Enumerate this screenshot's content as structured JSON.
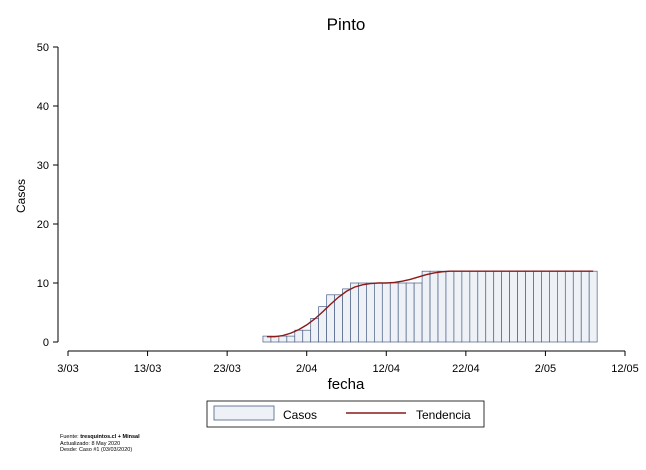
{
  "chart_data": {
    "type": "bar",
    "title": "Pinto",
    "xlabel": "fecha",
    "ylabel": "Casos",
    "ylim": [
      0,
      50
    ],
    "yticks": [
      "0",
      "10",
      "20",
      "30",
      "40",
      "50"
    ],
    "xticks": [
      "3/03",
      "13/03",
      "23/03",
      "2/04",
      "12/04",
      "22/04",
      "2/05",
      "12/05"
    ],
    "xlim": [
      "2020-03-03",
      "2020-05-12"
    ],
    "first_date": "2020-03-28",
    "values": [
      1,
      1,
      1,
      1,
      2,
      2,
      4,
      6,
      8,
      8,
      9,
      10,
      10,
      10,
      10,
      10,
      10,
      10,
      10,
      10,
      12,
      12,
      12,
      12,
      12,
      12,
      12,
      12,
      12,
      12,
      12,
      12,
      12,
      12,
      12,
      12,
      12,
      12,
      12,
      12,
      12,
      12
    ],
    "trend": [
      0.9,
      0.9,
      1.1,
      1.5,
      2.1,
      2.9,
      3.9,
      5.1,
      6.4,
      7.6,
      8.6,
      9.3,
      9.7,
      9.9,
      10.0,
      10.0,
      10.1,
      10.3,
      10.6,
      11.0,
      11.4,
      11.7,
      11.9,
      12.0,
      12.0,
      12.0,
      12.0,
      12.0,
      12.0,
      12.0,
      12.0,
      12.0,
      12.0,
      12.0,
      12.0,
      12.0,
      12.0,
      12.0,
      12.0,
      12.0,
      12.0,
      12.0
    ],
    "legend": {
      "bars": "Casos",
      "line": "Tendencia"
    },
    "legend_position": "bottom",
    "grid": false,
    "colors": {
      "bar_fill": "#eef2f6",
      "bar_stroke": "#4a5f86",
      "line": "#8b1a1a"
    }
  },
  "source": {
    "line1_prefix": "Fuente: ",
    "line1_bold": "tresquintos.cl + Minsal",
    "line2": "Actualizado: 8 May 2020",
    "line3": "Desde: Caso #1  (03/03/2020)"
  }
}
